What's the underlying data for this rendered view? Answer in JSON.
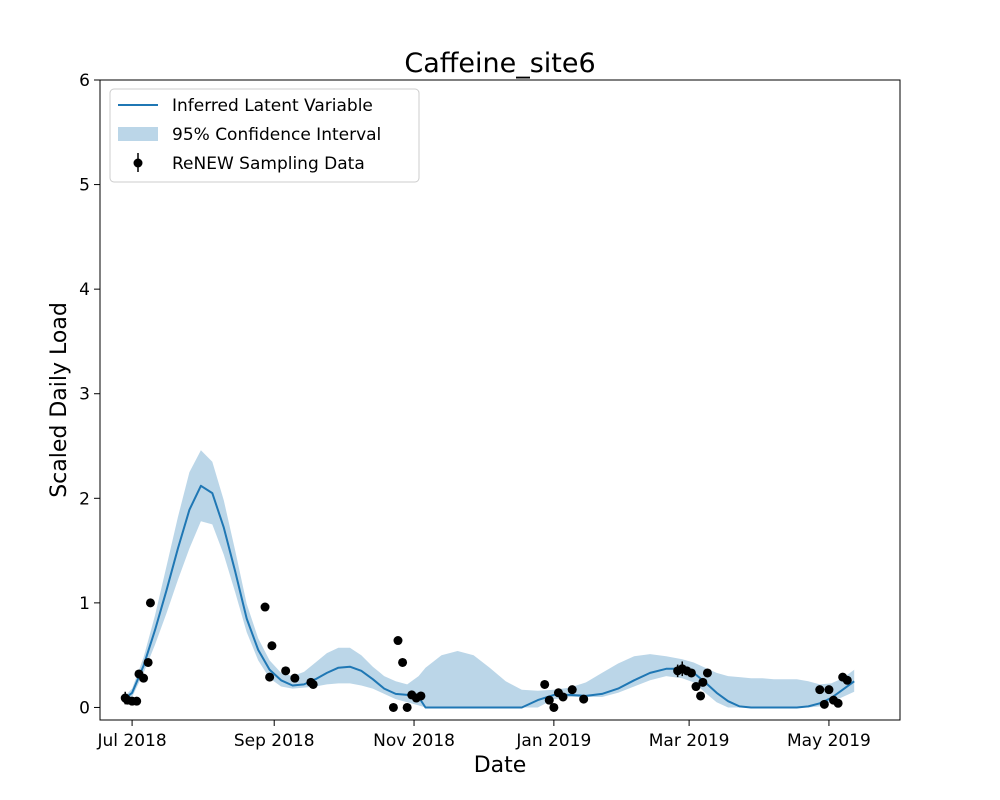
{
  "chart_data": {
    "type": "line",
    "title": "Caffeine_site6",
    "xlabel": "Date",
    "ylabel": "Scaled Daily Load",
    "xlim": [
      "2018-06-17",
      "2019-06-01"
    ],
    "ylim": [
      -0.12,
      6
    ],
    "x_ticks": [
      {
        "date": "2018-07-01",
        "label": "Jul 2018"
      },
      {
        "date": "2018-09-01",
        "label": "Sep 2018"
      },
      {
        "date": "2018-11-01",
        "label": "Nov 2018"
      },
      {
        "date": "2019-01-01",
        "label": "Jan 2019"
      },
      {
        "date": "2019-03-01",
        "label": "Mar 2019"
      },
      {
        "date": "2019-05-01",
        "label": "May 2019"
      }
    ],
    "y_ticks": [
      0,
      1,
      2,
      3,
      4,
      5,
      6
    ],
    "grid": false,
    "legend_position": "top-left",
    "series": [
      {
        "name": "Inferred Latent Variable",
        "kind": "line",
        "color": "#1f77b4",
        "x": [
          "2018-06-27",
          "2018-07-01",
          "2018-07-06",
          "2018-07-11",
          "2018-07-16",
          "2018-07-21",
          "2018-07-26",
          "2018-07-31",
          "2018-08-05",
          "2018-08-10",
          "2018-08-15",
          "2018-08-20",
          "2018-08-25",
          "2018-08-30",
          "2018-09-04",
          "2018-09-09",
          "2018-09-14",
          "2018-09-19",
          "2018-09-24",
          "2018-09-29",
          "2018-10-04",
          "2018-10-09",
          "2018-10-14",
          "2018-10-19",
          "2018-10-24",
          "2018-10-29",
          "2018-11-03",
          "2018-11-06",
          "2018-11-13",
          "2018-11-20",
          "2018-11-27",
          "2018-12-04",
          "2018-12-11",
          "2018-12-18",
          "2018-12-25",
          "2019-01-01",
          "2019-01-08",
          "2019-01-15",
          "2019-01-22",
          "2019-01-29",
          "2019-02-05",
          "2019-02-12",
          "2019-02-19",
          "2019-02-26",
          "2019-03-03",
          "2019-03-08",
          "2019-03-13",
          "2019-03-18",
          "2019-03-23",
          "2019-03-28",
          "2019-04-02",
          "2019-04-07",
          "2019-04-12",
          "2019-04-17",
          "2019-04-22",
          "2019-04-27",
          "2019-05-02",
          "2019-05-07",
          "2019-05-12"
        ],
        "values": [
          0.07,
          0.14,
          0.4,
          0.74,
          1.12,
          1.52,
          1.89,
          2.12,
          2.05,
          1.72,
          1.3,
          0.85,
          0.55,
          0.36,
          0.26,
          0.21,
          0.22,
          0.27,
          0.33,
          0.38,
          0.39,
          0.35,
          0.27,
          0.18,
          0.13,
          0.12,
          0.1,
          0.0,
          0.0,
          0.0,
          0.0,
          0.0,
          0.0,
          0.0,
          0.07,
          0.12,
          0.12,
          0.11,
          0.13,
          0.18,
          0.26,
          0.33,
          0.37,
          0.37,
          0.33,
          0.24,
          0.14,
          0.06,
          0.01,
          0.0,
          0.0,
          0.0,
          0.0,
          0.0,
          0.01,
          0.04,
          0.09,
          0.17,
          0.25
        ]
      },
      {
        "name": "95% Confidence Interval",
        "kind": "band",
        "color": "#1f77b4",
        "opacity": 0.3,
        "x": [
          "2018-06-27",
          "2018-07-01",
          "2018-07-06",
          "2018-07-11",
          "2018-07-16",
          "2018-07-21",
          "2018-07-26",
          "2018-07-31",
          "2018-08-05",
          "2018-08-10",
          "2018-08-15",
          "2018-08-20",
          "2018-08-25",
          "2018-08-30",
          "2018-09-04",
          "2018-09-09",
          "2018-09-14",
          "2018-09-19",
          "2018-09-24",
          "2018-09-29",
          "2018-10-04",
          "2018-10-09",
          "2018-10-14",
          "2018-10-19",
          "2018-10-24",
          "2018-10-29",
          "2018-11-03",
          "2018-11-06",
          "2018-11-13",
          "2018-11-20",
          "2018-11-27",
          "2018-12-04",
          "2018-12-11",
          "2018-12-18",
          "2018-12-25",
          "2019-01-01",
          "2019-01-08",
          "2019-01-15",
          "2019-01-22",
          "2019-01-29",
          "2019-02-05",
          "2019-02-12",
          "2019-02-19",
          "2019-02-26",
          "2019-03-03",
          "2019-03-08",
          "2019-03-13",
          "2019-03-18",
          "2019-03-23",
          "2019-03-28",
          "2019-04-02",
          "2019-04-07",
          "2019-04-12",
          "2019-04-17",
          "2019-04-22",
          "2019-04-27",
          "2019-05-02",
          "2019-05-07",
          "2019-05-12"
        ],
        "lower": [
          0.05,
          0.1,
          0.33,
          0.6,
          0.9,
          1.22,
          1.52,
          1.78,
          1.75,
          1.46,
          1.1,
          0.72,
          0.45,
          0.28,
          0.2,
          0.18,
          0.19,
          0.2,
          0.22,
          0.23,
          0.23,
          0.21,
          0.18,
          0.13,
          0.08,
          0.05,
          0.02,
          0.0,
          0.0,
          0.0,
          0.0,
          0.0,
          0.0,
          0.0,
          0.0,
          0.08,
          0.1,
          0.1,
          0.1,
          0.14,
          0.2,
          0.26,
          0.3,
          0.28,
          0.24,
          0.14,
          0.05,
          0.0,
          0.0,
          0.0,
          0.0,
          0.0,
          0.0,
          0.0,
          0.0,
          0.01,
          0.05,
          0.1,
          0.15
        ],
        "upper": [
          0.09,
          0.18,
          0.48,
          0.88,
          1.35,
          1.82,
          2.25,
          2.46,
          2.35,
          1.98,
          1.5,
          0.99,
          0.66,
          0.45,
          0.33,
          0.3,
          0.34,
          0.43,
          0.52,
          0.57,
          0.57,
          0.5,
          0.39,
          0.3,
          0.25,
          0.22,
          0.3,
          0.38,
          0.5,
          0.54,
          0.5,
          0.38,
          0.25,
          0.17,
          0.16,
          0.17,
          0.19,
          0.24,
          0.33,
          0.42,
          0.49,
          0.51,
          0.49,
          0.46,
          0.43,
          0.38,
          0.33,
          0.3,
          0.29,
          0.28,
          0.28,
          0.27,
          0.27,
          0.27,
          0.25,
          0.22,
          0.23,
          0.28,
          0.36
        ]
      },
      {
        "name": "ReNEW Sampling Data",
        "kind": "errorbar",
        "color": "#000000",
        "x": [
          "2018-06-28",
          "2018-06-29",
          "2018-07-01",
          "2018-07-03",
          "2018-07-04",
          "2018-07-06",
          "2018-07-08",
          "2018-07-09",
          "2018-08-28",
          "2018-08-30",
          "2018-08-31",
          "2018-09-06",
          "2018-09-10",
          "2018-09-17",
          "2018-09-18",
          "2018-10-23",
          "2018-10-25",
          "2018-10-27",
          "2018-10-29",
          "2018-10-31",
          "2018-11-02",
          "2018-11-04",
          "2018-12-28",
          "2018-12-30",
          "2019-01-01",
          "2019-01-03",
          "2019-01-05",
          "2019-01-09",
          "2019-01-14",
          "2019-02-24",
          "2019-02-26",
          "2019-02-28",
          "2019-03-02",
          "2019-03-04",
          "2019-03-06",
          "2019-03-07",
          "2019-03-09",
          "2019-04-27",
          "2019-04-29",
          "2019-05-01",
          "2019-05-03",
          "2019-05-05",
          "2019-05-07",
          "2019-05-09"
        ],
        "values": [
          0.09,
          0.07,
          0.06,
          0.06,
          0.32,
          0.28,
          0.43,
          1.0,
          0.96,
          0.29,
          0.59,
          0.35,
          0.28,
          0.24,
          0.22,
          0.0,
          0.64,
          0.43,
          0.0,
          0.12,
          0.09,
          0.11,
          0.22,
          0.07,
          0.0,
          0.14,
          0.1,
          0.17,
          0.08,
          0.35,
          0.37,
          0.35,
          0.33,
          0.2,
          0.11,
          0.24,
          0.33,
          0.17,
          0.03,
          0.17,
          0.07,
          0.04,
          0.29,
          0.26
        ],
        "errors": [
          0.06,
          0.02,
          0.02,
          0.02,
          0.03,
          0.03,
          0.03,
          0.03,
          0.03,
          0.02,
          0.03,
          0.02,
          0.02,
          0.02,
          0.02,
          0.02,
          0.03,
          0.02,
          0.02,
          0.02,
          0.02,
          0.02,
          0.02,
          0.02,
          0.02,
          0.02,
          0.02,
          0.02,
          0.02,
          0.06,
          0.07,
          0.04,
          0.03,
          0.02,
          0.02,
          0.02,
          0.02,
          0.02,
          0.02,
          0.02,
          0.02,
          0.02,
          0.02,
          0.02
        ]
      }
    ]
  }
}
